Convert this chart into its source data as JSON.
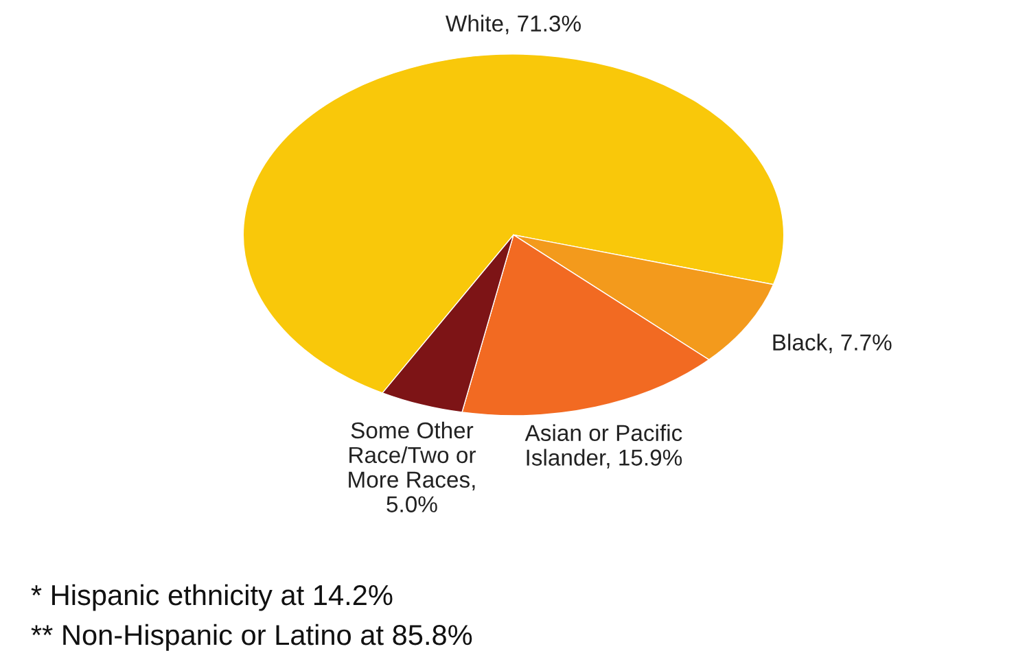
{
  "chart_data": {
    "type": "pie",
    "categories": [
      "White, 71.3%",
      "Black, 7.7%",
      "Asian or Pacific Islander, 15.9%",
      "Some Other Race/Two or More Races, 5.0%"
    ],
    "values": [
      71.3,
      7.7,
      15.9,
      5.0
    ],
    "colors": [
      "#f9c80a",
      "#f39a1c",
      "#f26a22",
      "#7d1416"
    ],
    "annotations": [
      "* Hispanic ethnicity at 14.2%",
      "** Non-Hispanic or Latino at 85.8%"
    ]
  }
}
